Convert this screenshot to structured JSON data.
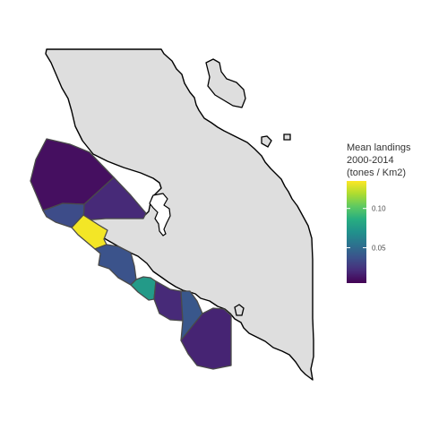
{
  "legend": {
    "title_lines": [
      "Mean landings",
      "2000-2014",
      "(tones / Km2)"
    ],
    "min": 0.005,
    "max": 0.135,
    "ticks": [
      {
        "value": 0.05,
        "label": "0.05"
      },
      {
        "value": 0.1,
        "label": "0.10"
      }
    ],
    "colormap": "viridis"
  },
  "colors": {
    "land_fill": "#dedede",
    "coastline": "#000000",
    "region_border": "#4a4a4a",
    "background": "#ffffff"
  },
  "regions": [
    {
      "id": "northwest-offshore",
      "value": 0.01
    },
    {
      "id": "northern-middle",
      "value": 0.02
    },
    {
      "id": "western-inner",
      "value": 0.035
    },
    {
      "id": "coastal-hotspot",
      "value": 0.133
    },
    {
      "id": "middle-coast",
      "value": 0.038
    },
    {
      "id": "green-coast",
      "value": 0.075
    },
    {
      "id": "dark-coast",
      "value": 0.02
    },
    {
      "id": "mid-south-coast",
      "value": 0.04
    },
    {
      "id": "south-offshore",
      "value": 0.018
    }
  ]
}
